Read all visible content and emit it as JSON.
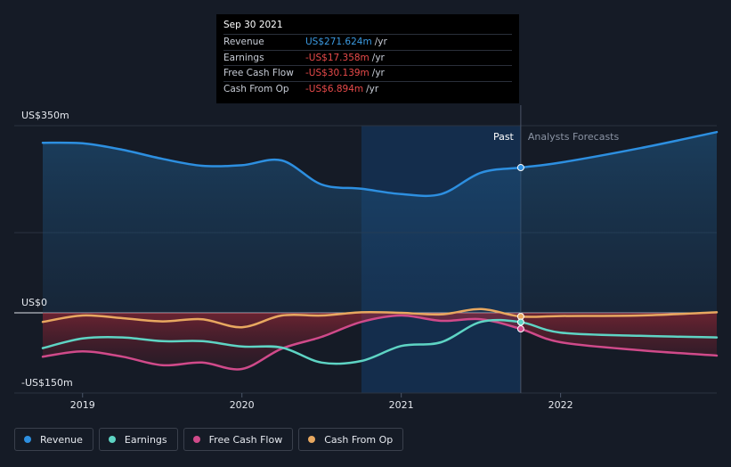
{
  "tooltip": {
    "date": "Sep 30 2021",
    "rows": [
      {
        "label": "Revenue",
        "value": "US$271.624m",
        "unit": "/yr",
        "color": "#3b9ae1"
      },
      {
        "label": "Earnings",
        "value": "-US$17.358m",
        "unit": "/yr",
        "color": "#e84a4a"
      },
      {
        "label": "Free Cash Flow",
        "value": "-US$30.139m",
        "unit": "/yr",
        "color": "#e84a4a"
      },
      {
        "label": "Cash From Op",
        "value": "-US$6.894m",
        "unit": "/yr",
        "color": "#e84a4a"
      }
    ]
  },
  "legend": [
    {
      "label": "Revenue",
      "color": "#2d8fe0"
    },
    {
      "label": "Earnings",
      "color": "#5ed4c4"
    },
    {
      "label": "Free Cash Flow",
      "color": "#d04a8a"
    },
    {
      "label": "Cash From Op",
      "color": "#e8a860"
    }
  ],
  "chart_data": {
    "type": "line",
    "y_ticks": [
      "US$350m",
      "US$0",
      "-US$150m"
    ],
    "x_ticks": [
      "2019",
      "2020",
      "2021",
      "2022"
    ],
    "x_tick_values": [
      2019.0,
      2020.0,
      2021.0,
      2022.0
    ],
    "xlim": [
      2018.75,
      2022.98
    ],
    "ylim": [
      -150,
      350
    ],
    "past_label": "Past",
    "forecast_label": "Analysts Forecasts",
    "split_x": 2021.75,
    "highlight_start_x": 2020.75,
    "marker_x": 2021.75,
    "series": [
      {
        "name": "Revenue",
        "color": "#2d8fe0",
        "points": [
          [
            2018.75,
            318
          ],
          [
            2019.0,
            317
          ],
          [
            2019.25,
            305
          ],
          [
            2019.5,
            288
          ],
          [
            2019.75,
            275
          ],
          [
            2020.0,
            276
          ],
          [
            2020.25,
            285
          ],
          [
            2020.5,
            240
          ],
          [
            2020.75,
            232
          ],
          [
            2021.0,
            222
          ],
          [
            2021.25,
            222
          ],
          [
            2021.5,
            262
          ],
          [
            2021.75,
            271.6
          ],
          [
            2022.0,
            281
          ],
          [
            2022.5,
            308
          ],
          [
            2022.98,
            338
          ]
        ]
      },
      {
        "name": "Earnings",
        "color": "#5ed4c4",
        "points": [
          [
            2018.75,
            -66
          ],
          [
            2019.0,
            -48
          ],
          [
            2019.25,
            -46
          ],
          [
            2019.5,
            -53
          ],
          [
            2019.75,
            -53
          ],
          [
            2020.0,
            -63
          ],
          [
            2020.25,
            -65
          ],
          [
            2020.5,
            -93
          ],
          [
            2020.75,
            -90
          ],
          [
            2021.0,
            -62
          ],
          [
            2021.25,
            -55
          ],
          [
            2021.5,
            -17
          ],
          [
            2021.75,
            -17.4
          ],
          [
            2022.0,
            -37
          ],
          [
            2022.5,
            -43
          ],
          [
            2022.98,
            -46
          ]
        ]
      },
      {
        "name": "Free Cash Flow",
        "color": "#d04a8a",
        "points": [
          [
            2018.75,
            -82
          ],
          [
            2019.0,
            -72
          ],
          [
            2019.25,
            -82
          ],
          [
            2019.5,
            -98
          ],
          [
            2019.75,
            -93
          ],
          [
            2020.0,
            -105
          ],
          [
            2020.25,
            -67
          ],
          [
            2020.5,
            -45
          ],
          [
            2020.75,
            -17
          ],
          [
            2021.0,
            -5
          ],
          [
            2021.25,
            -15
          ],
          [
            2021.5,
            -12
          ],
          [
            2021.75,
            -30.1
          ],
          [
            2022.0,
            -55
          ],
          [
            2022.5,
            -70
          ],
          [
            2022.98,
            -80
          ]
        ]
      },
      {
        "name": "Cash From Op",
        "color": "#e8a860",
        "points": [
          [
            2018.75,
            -17
          ],
          [
            2019.0,
            -5
          ],
          [
            2019.25,
            -10
          ],
          [
            2019.5,
            -16
          ],
          [
            2019.75,
            -12
          ],
          [
            2020.0,
            -27
          ],
          [
            2020.25,
            -5
          ],
          [
            2020.5,
            -5
          ],
          [
            2020.75,
            1
          ],
          [
            2021.0,
            0
          ],
          [
            2021.25,
            -3
          ],
          [
            2021.5,
            7
          ],
          [
            2021.75,
            -6.9
          ],
          [
            2022.0,
            -6
          ],
          [
            2022.5,
            -5
          ],
          [
            2022.98,
            1
          ]
        ]
      }
    ]
  }
}
